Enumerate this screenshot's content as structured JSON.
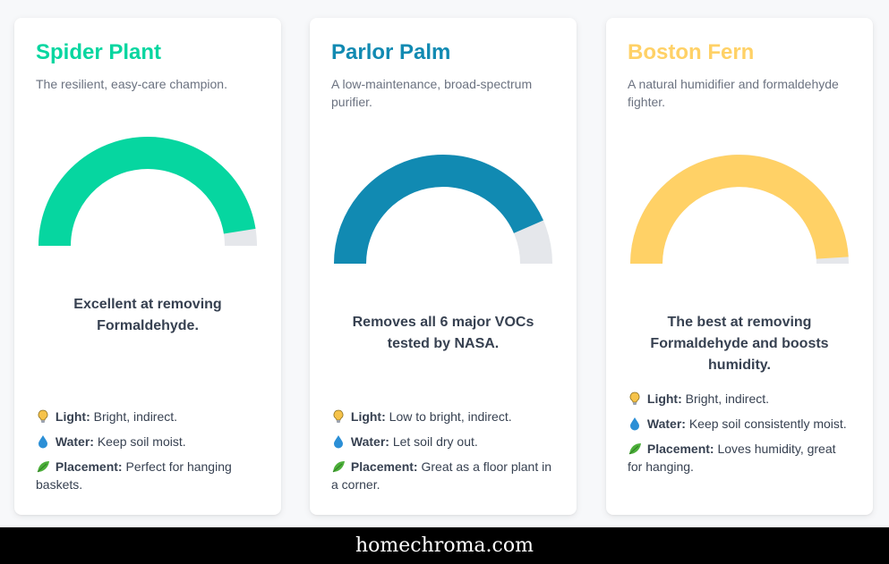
{
  "colors": {
    "spider": "#06d6a0",
    "parlor": "#118ab2",
    "boston": "#ffd166",
    "track": "#e5e7eb"
  },
  "cards": [
    {
      "title": "Spider Plant",
      "subtitle": "The resilient, easy-care champion.",
      "gauge_fraction": 0.95,
      "description": "Excellent at removing Formaldehyde.",
      "light_label": "Light:",
      "light_value": "Bright, indirect.",
      "water_label": "Water:",
      "water_value": "Keep soil moist.",
      "placement_label": "Placement:",
      "placement_value": "Perfect for hanging baskets."
    },
    {
      "title": "Parlor Palm",
      "subtitle": "A low-maintenance, broad-spectrum purifier.",
      "gauge_fraction": 0.87,
      "description": "Removes all 6 major VOCs tested by NASA.",
      "light_label": "Light:",
      "light_value": "Low to bright, indirect.",
      "water_label": "Water:",
      "water_value": "Let soil dry out.",
      "placement_label": "Placement:",
      "placement_value": "Great as a floor plant in a corner."
    },
    {
      "title": "Boston Fern",
      "subtitle": "A natural humidifier and formaldehyde fighter.",
      "gauge_fraction": 0.98,
      "description": "The best at removing Formaldehyde and boosts humidity.",
      "light_label": "Light:",
      "light_value": "Bright, indirect.",
      "water_label": "Water:",
      "water_value": "Keep soil consistently moist.",
      "placement_label": "Placement:",
      "placement_value": "Loves humidity, great for hanging."
    }
  ],
  "icons": {
    "light": "lightbulb-icon",
    "water": "water-drop-icon",
    "placement": "leaf-icon"
  },
  "footer": {
    "site": "homechroma.com"
  }
}
